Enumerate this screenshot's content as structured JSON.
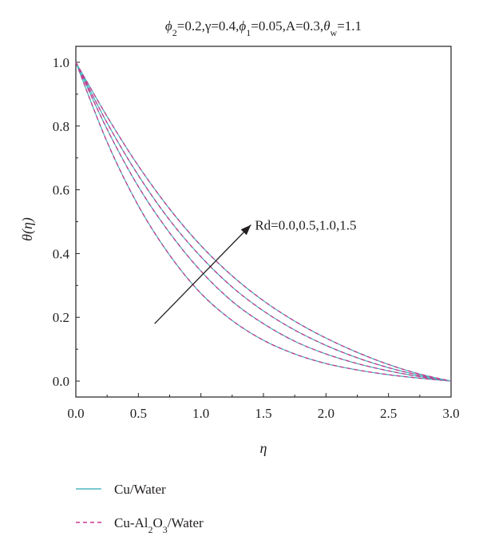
{
  "chart_data": {
    "type": "line",
    "title_parts": [
      {
        "t": "ϕ",
        "style": "italic"
      },
      {
        "t": "2",
        "style": "sub"
      },
      {
        "t": "=0.2,γ=0.4,",
        "style": "normal"
      },
      {
        "t": "ϕ",
        "style": "italic"
      },
      {
        "t": "1",
        "style": "sub"
      },
      {
        "t": "=0.05,A=0.3,",
        "style": "normal"
      },
      {
        "t": "θ",
        "style": "italic"
      },
      {
        "t": "w",
        "style": "sub"
      },
      {
        "t": "=1.1",
        "style": "normal"
      }
    ],
    "xlabel": "η",
    "ylabel": "θ(η)",
    "xlim": [
      0,
      3
    ],
    "ylim": [
      -0.05,
      1.05
    ],
    "xticks": [
      "0.0",
      "0.5",
      "1.0",
      "1.5",
      "2.0",
      "2.5",
      "3.0"
    ],
    "yticks": [
      "0.0",
      "0.2",
      "0.4",
      "0.6",
      "0.8",
      "1.0"
    ],
    "annotation": {
      "text": "Rd=0.0,0.5,1.0,1.5",
      "arrow_from": [
        0.63,
        0.18
      ],
      "arrow_to": [
        1.4,
        0.49
      ]
    },
    "x": [
      0.0,
      0.25,
      0.5,
      0.75,
      1.0,
      1.25,
      1.5,
      1.75,
      2.0,
      2.25,
      2.5,
      2.75,
      3.0
    ],
    "series": [
      {
        "name": "Rd=0.0",
        "values": [
          1.0,
          0.75,
          0.55,
          0.395,
          0.275,
          0.19,
          0.128,
          0.085,
          0.055,
          0.035,
          0.02,
          0.009,
          0.0
        ]
      },
      {
        "name": "Rd=0.5",
        "values": [
          1.0,
          0.79,
          0.61,
          0.465,
          0.345,
          0.25,
          0.18,
          0.125,
          0.085,
          0.055,
          0.032,
          0.014,
          0.0
        ]
      },
      {
        "name": "Rd=1.0",
        "values": [
          1.0,
          0.81,
          0.645,
          0.505,
          0.39,
          0.295,
          0.22,
          0.16,
          0.112,
          0.073,
          0.042,
          0.018,
          0.0
        ]
      },
      {
        "name": "Rd=1.5",
        "values": [
          1.0,
          0.83,
          0.675,
          0.54,
          0.425,
          0.33,
          0.252,
          0.188,
          0.135,
          0.09,
          0.052,
          0.022,
          0.0
        ]
      }
    ],
    "legend": {
      "placement": "bottom-left",
      "entries": [
        {
          "label_parts": [
            {
              "t": "Cu/Water",
              "style": "normal"
            }
          ],
          "style": "solid",
          "color": "#4fb8bf"
        },
        {
          "label_parts": [
            {
              "t": "Cu-Al",
              "style": "normal"
            },
            {
              "t": "2",
              "style": "sub"
            },
            {
              "t": "O",
              "style": "normal"
            },
            {
              "t": "3",
              "style": "sub"
            },
            {
              "t": "/Water",
              "style": "normal"
            }
          ],
          "style": "dashed",
          "color": "#c5398f"
        }
      ]
    },
    "colors": {
      "solid": "#4fb8bf",
      "dashed": "#c5398f",
      "axis": "#231f20"
    }
  }
}
